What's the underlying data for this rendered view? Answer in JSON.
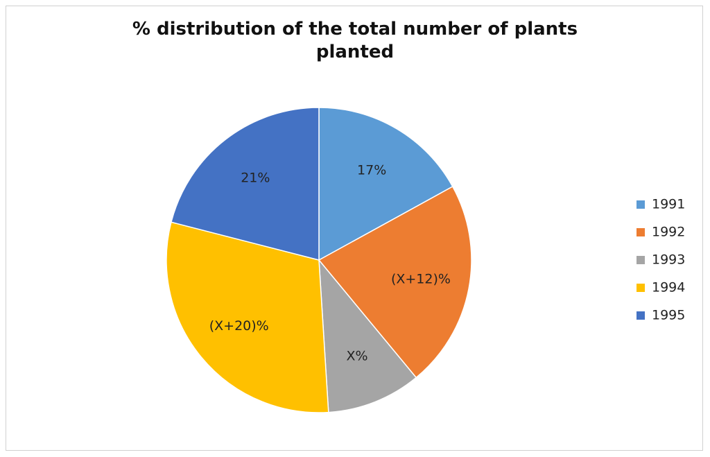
{
  "chart_data": {
    "type": "pie",
    "title": "% distribution of the total number of plants planted",
    "categories": [
      "1991",
      "1992",
      "1993",
      "1994",
      "1995"
    ],
    "values": [
      17,
      22,
      10,
      30,
      21
    ],
    "value_labels": [
      "17%",
      "(X+12)%",
      "X%",
      "(X+20)%",
      "21%"
    ],
    "colors": [
      "#5b9bd5",
      "#ed7d31",
      "#a5a5a5",
      "#ffc000",
      "#4472c4"
    ],
    "legend": "right"
  }
}
